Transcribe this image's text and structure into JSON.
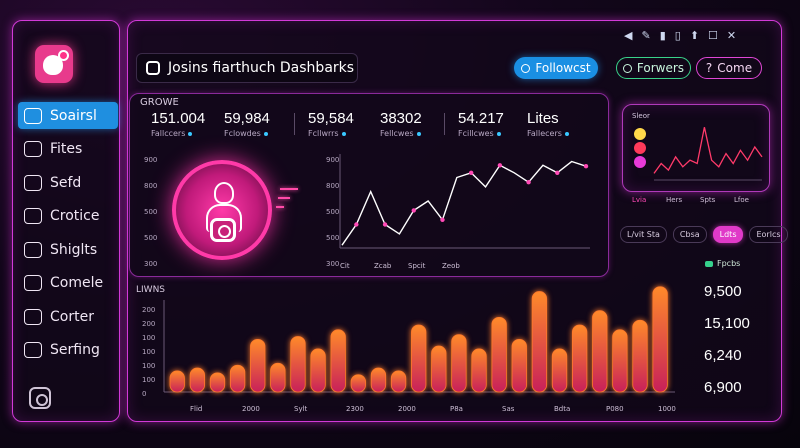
{
  "sidebar": {
    "items": [
      {
        "label": "Soairsl",
        "icon": "search-icon",
        "active": true
      },
      {
        "label": "Fites",
        "icon": "file-icon"
      },
      {
        "label": "Sefd",
        "icon": "send-icon"
      },
      {
        "label": "Crotice",
        "icon": "chart-icon"
      },
      {
        "label": "Shiglts",
        "icon": "shield-icon"
      },
      {
        "label": "Comele",
        "icon": "chat-icon"
      },
      {
        "label": "Corter",
        "icon": "grid-icon"
      },
      {
        "label": "Serfing",
        "icon": "settings-icon"
      }
    ]
  },
  "header": {
    "title": "Josins fiarthuch Dashbarks",
    "window_controls": [
      "◀",
      "✎",
      "▮",
      "▯",
      "⬆",
      "☐",
      "✕"
    ],
    "follow_button": "Followcst",
    "followers_button": "Forwers",
    "come_button": "Come"
  },
  "stats": {
    "section_label": "GROWE",
    "items": [
      {
        "value": "151.004",
        "label": "Fallccers"
      },
      {
        "value": "59,984",
        "label": "Fclowdes"
      },
      {
        "value": "59,584",
        "label": "Fcllwrrs"
      },
      {
        "value": "38302",
        "label": "Fellcwes"
      },
      {
        "value": "54.217",
        "label": "Fcillcwes"
      },
      {
        "value": "Lites",
        "label": "Fallecers"
      }
    ]
  },
  "line_chart": {
    "y_ticks": [
      "900",
      "800",
      "500",
      "500",
      "300"
    ],
    "x_ticks": [
      "Cit",
      "Zcab",
      "Spcit",
      "Zeob"
    ],
    "points": [
      3,
      25,
      60,
      25,
      15,
      40,
      50,
      30,
      75,
      80,
      65,
      88,
      80,
      70,
      88,
      80,
      92,
      87
    ]
  },
  "mini_chart": {
    "title": "Sleor",
    "x_ticks": [
      "Lvia",
      "Hers",
      "Spts",
      "Lfoe"
    ],
    "points": [
      10,
      25,
      15,
      35,
      20,
      30,
      25,
      80,
      30,
      20,
      40,
      25,
      45,
      30,
      50,
      35
    ]
  },
  "filters": [
    "L/vit Sta",
    "Cbsa",
    "Ldts",
    "Eorlcs"
  ],
  "legend_label": "Fpcbs",
  "bar_chart": {
    "title": "LIWNS",
    "y_ticks": [
      "200",
      "200",
      "100",
      "100",
      "100",
      "100",
      "0"
    ],
    "x_ticks": [
      "Flid",
      "2000",
      "Sylt",
      "2300",
      "2000",
      "P8a",
      "Sas",
      "Bdta",
      "P080",
      "1000"
    ],
    "values": [
      22,
      25,
      20,
      28,
      55,
      30,
      58,
      45,
      65,
      18,
      25,
      22,
      70,
      48,
      60,
      45,
      78,
      55,
      105,
      45,
      70,
      85,
      65,
      75,
      110
    ],
    "accent": "#ff7a2a"
  },
  "side_values": [
    "9,500",
    "15,100",
    "6,240",
    "6,900"
  ]
}
